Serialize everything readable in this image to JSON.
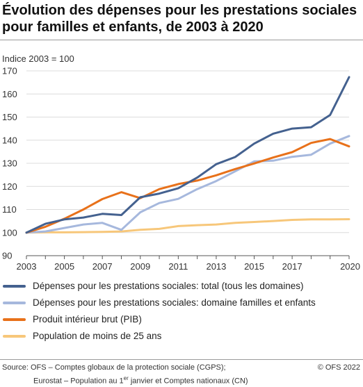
{
  "title": "Évolution des dépenses pour les prestations sociales pour familles et enfants, de 2003 à 2020",
  "unit_label": "Indice 2003 = 100",
  "source": {
    "line1": "Source: OFS – Comptes globaux de la protection sociale (CGPS);",
    "line2_before": "Eurostat – Population au 1",
    "line2_sup": "er",
    "line2_after": " janvier et Comptes nationaux (CN)"
  },
  "copyright": "© OFS 2022",
  "colors": {
    "grid": "#dcdcdc",
    "axis": "#555555"
  },
  "chart_data": {
    "type": "line",
    "title": "Évolution des dépenses pour les prestations sociales pour familles et enfants, de 2003 à 2020",
    "ylabel": "Indice 2003 = 100",
    "xlabel": "",
    "x": [
      2003,
      2004,
      2005,
      2006,
      2007,
      2008,
      2009,
      2010,
      2011,
      2012,
      2013,
      2014,
      2015,
      2016,
      2017,
      2018,
      2019,
      2020
    ],
    "xticks": [
      "2003",
      "2005",
      "2007",
      "2009",
      "2011",
      "2013",
      "2015",
      "2017",
      "2020"
    ],
    "ylim": [
      90,
      170
    ],
    "yticks": [
      90,
      100,
      110,
      120,
      130,
      140,
      150,
      160,
      170
    ],
    "grid": true,
    "legend_position": "bottom",
    "series": [
      {
        "name": "Dépenses pour les prestations sociales: total (tous les domaines)",
        "color": "#44618f",
        "values": [
          100,
          103.8,
          105.7,
          106.5,
          108.1,
          107.6,
          115.3,
          116.9,
          119.2,
          123.8,
          129.6,
          132.7,
          138.5,
          142.8,
          145,
          145.6,
          150.9,
          167.3
        ]
      },
      {
        "name": "Dépenses pour les prestations sociales: domaine familles et enfants",
        "color": "#a6b8dd",
        "values": [
          100,
          100.5,
          102,
          103.5,
          104.2,
          101.2,
          108.8,
          112.8,
          114.6,
          118.8,
          122.3,
          126.5,
          130.8,
          131.1,
          132.8,
          133.7,
          138.5,
          141.8
        ]
      },
      {
        "name": "Produit intérieur brut (PIB)",
        "color": "#e8711a",
        "values": [
          100,
          102.5,
          106,
          110,
          114.5,
          117.5,
          114.9,
          118.8,
          121,
          122.5,
          124.8,
          127.5,
          129.9,
          132.5,
          134.8,
          138.8,
          140.5,
          137.3
        ]
      },
      {
        "name": "Population de moins de 25 ans",
        "color": "#f7c77a",
        "values": [
          100,
          100.1,
          100.1,
          100.2,
          100.3,
          100.5,
          101.2,
          101.6,
          102.8,
          103.2,
          103.5,
          104.2,
          104.6,
          105,
          105.5,
          105.7,
          105.7,
          105.8
        ]
      }
    ]
  }
}
